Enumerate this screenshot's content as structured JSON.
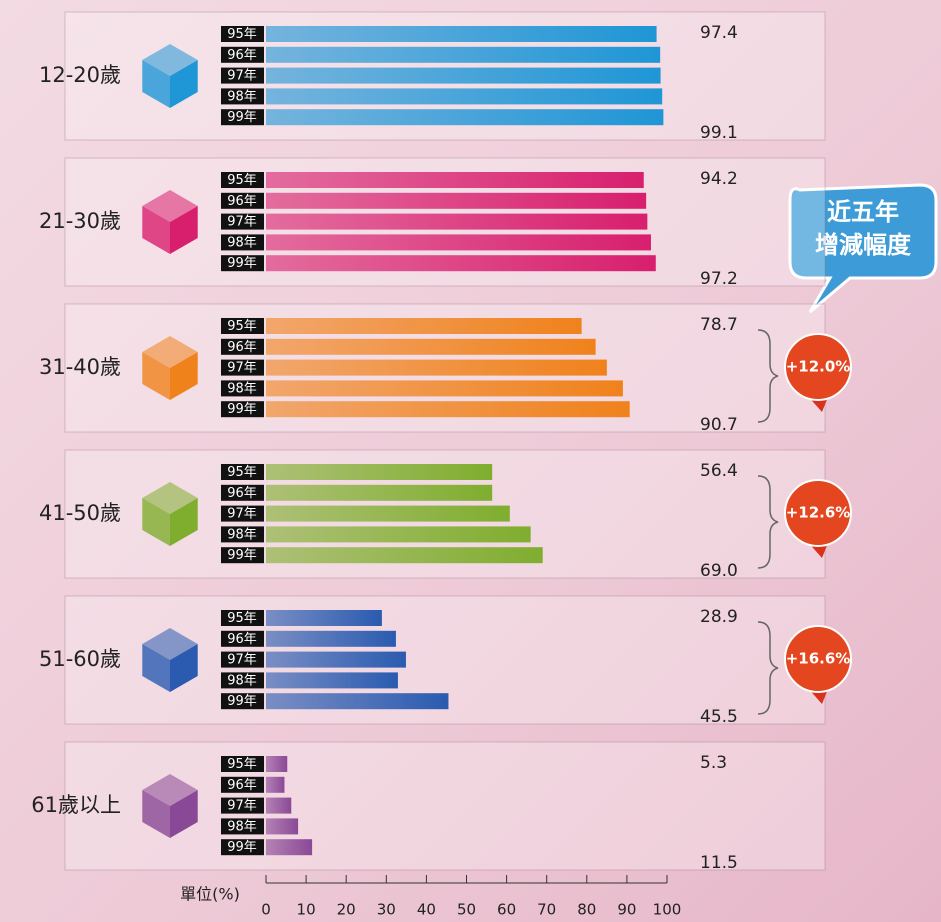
{
  "chart_data": {
    "type": "bar",
    "orientation": "horizontal",
    "categories": [
      "95年",
      "96年",
      "97年",
      "98年",
      "99年"
    ],
    "series": [
      {
        "name": "12-20歲",
        "color": "#1f96d6",
        "values": [
          97.4,
          98.3,
          98.4,
          98.8,
          99.1
        ],
        "value_labels": [
          "97.4",
          null,
          null,
          null,
          "99.1"
        ]
      },
      {
        "name": "21-30歲",
        "color": "#d81f6e",
        "values": [
          94.2,
          94.8,
          95.1,
          96.0,
          97.2
        ],
        "value_labels": [
          "94.2",
          null,
          null,
          null,
          "97.2"
        ]
      },
      {
        "name": "31-40歲",
        "color": "#f0821c",
        "values": [
          78.7,
          82.2,
          85.0,
          89.0,
          90.7
        ],
        "value_labels": [
          "78.7",
          null,
          null,
          null,
          "90.7"
        ],
        "change": "+12.0%"
      },
      {
        "name": "41-50歲",
        "color": "#7fae2e",
        "values": [
          56.4,
          56.4,
          60.8,
          66.0,
          69.0
        ],
        "value_labels": [
          "56.4",
          null,
          null,
          null,
          "69.0"
        ],
        "change": "+12.6%"
      },
      {
        "name": "51-60歲",
        "color": "#2a5bb0",
        "values": [
          28.9,
          32.4,
          34.9,
          32.9,
          45.5
        ],
        "value_labels": [
          "28.9",
          null,
          null,
          null,
          "45.5"
        ],
        "change": "+16.6%"
      },
      {
        "name": "61歲以上",
        "color": "#8a4996",
        "values": [
          5.3,
          4.6,
          6.3,
          8.0,
          11.5
        ],
        "value_labels": [
          "5.3",
          null,
          null,
          null,
          "11.5"
        ]
      }
    ],
    "xlim": [
      0,
      100
    ],
    "xticks": [
      0,
      10,
      20,
      30,
      40,
      50,
      60,
      70,
      80,
      90,
      100
    ],
    "x_label": "單位(%)",
    "callout": [
      "近五年",
      "增減幅度"
    ]
  }
}
